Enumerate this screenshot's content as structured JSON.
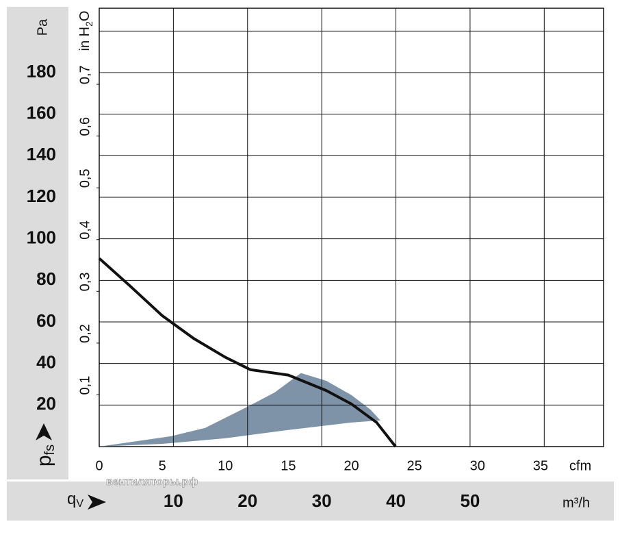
{
  "chart_data": {
    "type": "line",
    "y_unit": "Pa",
    "y_label": "p",
    "y_label_sub": "fs",
    "y2_unit": "in H",
    "y2_unit_sub": "2",
    "y2_unit_end": "O",
    "x_unit": "cfm",
    "x_label": "q",
    "x_label_sub": "V",
    "x2_unit": "m³/h",
    "watermark": "вентиляторы.рф",
    "xlim": [
      0,
      40
    ],
    "xticks": [
      0,
      5,
      10,
      15,
      20,
      25,
      30,
      35
    ],
    "x2lim": [
      0,
      68
    ],
    "x2ticks": [
      10,
      20,
      30,
      40,
      50,
      {
        "value": 60,
        "label": null
      }
    ],
    "ylim": [
      0,
      211
    ],
    "yticks": [
      20,
      40,
      60,
      80,
      100,
      120,
      140,
      160,
      180,
      {
        "value": 200,
        "label": null
      }
    ],
    "y2lim": [
      0,
      0.847
    ],
    "y2ticks": [
      {
        "value": 0.1,
        "label": "0,1"
      },
      {
        "value": 0.2,
        "label": "0,2"
      },
      {
        "value": 0.3,
        "label": "0,3"
      },
      {
        "value": 0.4,
        "label": "0,4"
      },
      {
        "value": 0.5,
        "label": "0,5"
      },
      {
        "value": 0.6,
        "label": "0,6"
      },
      {
        "value": 0.7,
        "label": "0,7"
      }
    ],
    "grid": true,
    "area": {
      "color": "#7f93a8",
      "x": [
        0,
        5.7,
        8.4,
        11.7,
        13.9,
        16,
        18,
        20,
        21.5,
        22.3,
        20,
        15,
        10,
        5
      ],
      "y": [
        0,
        5,
        9,
        19,
        26,
        35.4,
        31.7,
        24.8,
        17.9,
        12.6,
        11.6,
        8,
        4,
        1.3
      ]
    },
    "series": [
      {
        "color": "#111111",
        "x": [
          0,
          2.5,
          5,
          7.5,
          10,
          12,
          15,
          18,
          20,
          22,
          23.5
        ],
        "values": [
          90.6,
          77,
          63,
          52,
          43,
          37,
          34.4,
          27,
          20.5,
          11.6,
          0
        ]
      }
    ]
  }
}
